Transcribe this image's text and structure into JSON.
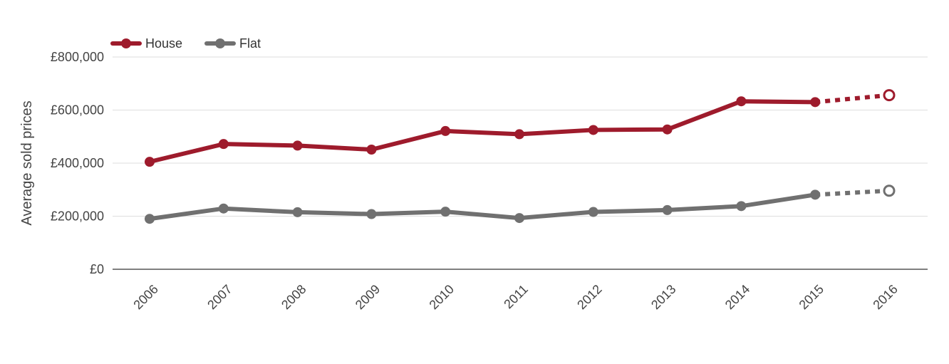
{
  "chart_data": {
    "type": "line",
    "title": "",
    "xlabel": "",
    "ylabel": "Average sold prices",
    "categories": [
      "2006",
      "2007",
      "2008",
      "2009",
      "2010",
      "2011",
      "2012",
      "2013",
      "2014",
      "2015",
      "2016"
    ],
    "ylim": [
      0,
      800000
    ],
    "yticks": [
      0,
      200000,
      400000,
      600000,
      800000
    ],
    "ytick_labels": [
      "£0",
      "£200,000",
      "£400,000",
      "£600,000",
      "£800,000"
    ],
    "grid": true,
    "legend_position": "top-left",
    "forecast_from_index": 9,
    "series": [
      {
        "name": "House",
        "color": "#9e1b2c",
        "values": [
          405000,
          472000,
          466000,
          451000,
          521000,
          509000,
          525000,
          527000,
          633000,
          630000,
          656000
        ]
      },
      {
        "name": "Flat",
        "color": "#707070",
        "values": [
          190000,
          229000,
          215000,
          208000,
          217000,
          193000,
          216000,
          223000,
          238000,
          281000,
          296000
        ]
      }
    ]
  }
}
